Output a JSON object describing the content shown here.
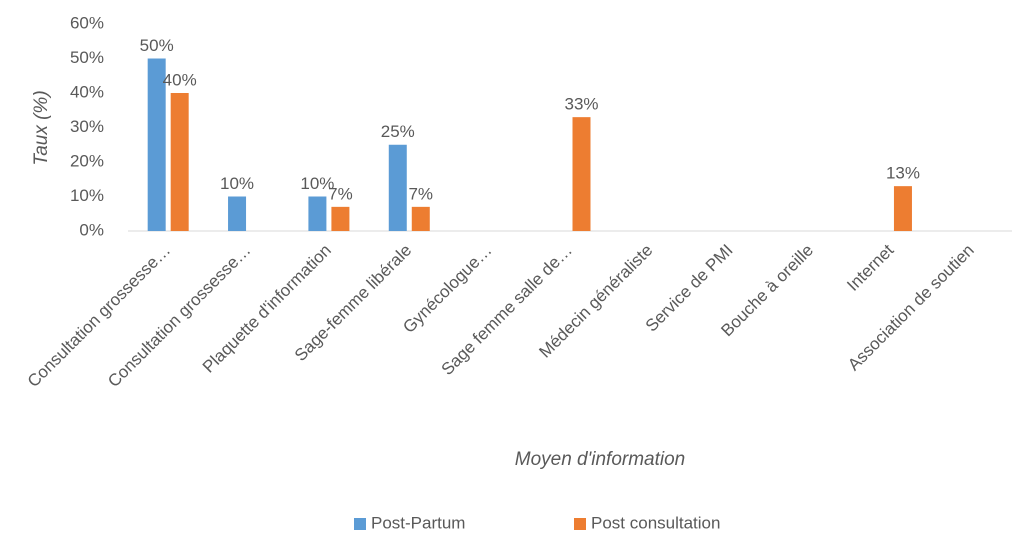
{
  "chart_data": {
    "type": "bar",
    "xlabel": "Moyen d'information",
    "ylabel": "Taux (%)",
    "categories": [
      "Consultation grossesse…",
      "Consultation grossesse…",
      "Plaquette d'information",
      "Sage-femme libérale",
      "Gynécologue…",
      "Sage femme salle de…",
      "Médecin généraliste",
      "Service de PMI",
      "Bouche à oreille",
      "Internet",
      "Association de soutien"
    ],
    "series": [
      {
        "name": "Post-Partum",
        "color": "#5b9bd5",
        "values": [
          50,
          10,
          10,
          25,
          null,
          null,
          null,
          null,
          null,
          null,
          null
        ],
        "value_labels": [
          "50%",
          "10%",
          "10%",
          "25%",
          null,
          null,
          null,
          null,
          null,
          null,
          null
        ]
      },
      {
        "name": "Post consultation",
        "color": "#ed7d31",
        "values": [
          40,
          null,
          7,
          7,
          null,
          33,
          null,
          null,
          null,
          13,
          null
        ],
        "value_labels": [
          "40%",
          null,
          "7%",
          "7%",
          null,
          "33%",
          null,
          null,
          null,
          "13%",
          null
        ]
      }
    ],
    "ylim": [
      0,
      60
    ],
    "yticks": [
      {
        "value": 0,
        "label": "0%"
      },
      {
        "value": 10,
        "label": "10%"
      },
      {
        "value": 20,
        "label": "20%"
      },
      {
        "value": 30,
        "label": "30%"
      },
      {
        "value": 40,
        "label": "40%"
      },
      {
        "value": 50,
        "label": "50%"
      },
      {
        "value": 60,
        "label": "60%"
      }
    ],
    "grid": false,
    "legend": "bottom"
  }
}
